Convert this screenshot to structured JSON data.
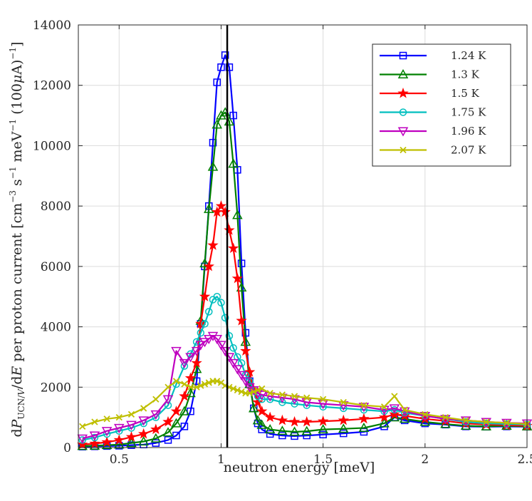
{
  "chart_data": {
    "type": "line",
    "title": "",
    "xlabel": "neutron energy [meV]",
    "ylabel": "dP_UCN/V/dE per proton current [cm^-3 s^-1 meV^-1 (100 μA)^-1]",
    "ylabel_parts": {
      "d1": "d",
      "p": "P",
      "sub": "UCN/",
      "v": "V",
      "mid": "/d",
      "e": "E",
      "text": " per proton current [cm",
      "s1": "−3",
      "t2": " s",
      "s2": "−1",
      "t3": " meV",
      "s3": "−1",
      "t4": " (100",
      "mu": "μ",
      "t5": "A)",
      "s4": "−1",
      "t6": "]"
    },
    "xlim": [
      0.3,
      2.5
    ],
    "ylim": [
      0,
      14000
    ],
    "xticks": [
      0.5,
      1,
      1.5,
      2,
      2.5
    ],
    "xtick_labels": [
      "0.5",
      "1",
      "1.5",
      "2",
      "2.5"
    ],
    "yticks": [
      0,
      2000,
      4000,
      6000,
      8000,
      10000,
      12000,
      14000
    ],
    "ytick_labels": [
      "0",
      "2000",
      "4000",
      "6000",
      "8000",
      "10000",
      "12000",
      "14000"
    ],
    "grid": true,
    "legend_position": "top-right",
    "vertical_line_x": 1.03,
    "series": [
      {
        "name": "1.24 K",
        "color": "#0000ff",
        "marker": "square",
        "x": [
          0.32,
          0.38,
          0.44,
          0.5,
          0.56,
          0.62,
          0.68,
          0.74,
          0.78,
          0.82,
          0.85,
          0.88,
          0.9,
          0.92,
          0.94,
          0.96,
          0.98,
          1.0,
          1.02,
          1.04,
          1.06,
          1.08,
          1.1,
          1.12,
          1.14,
          1.16,
          1.18,
          1.2,
          1.24,
          1.3,
          1.36,
          1.42,
          1.5,
          1.6,
          1.7,
          1.8,
          1.85,
          1.9,
          2.0,
          2.1,
          2.2,
          2.3,
          2.4,
          2.5
        ],
        "y": [
          30,
          40,
          50,
          60,
          80,
          100,
          150,
          250,
          400,
          700,
          1200,
          2200,
          4100,
          6000,
          8000,
          10100,
          12100,
          12600,
          13000,
          12600,
          11000,
          9200,
          6100,
          3800,
          2200,
          1300,
          800,
          600,
          450,
          400,
          380,
          400,
          430,
          470,
          520,
          700,
          1000,
          900,
          800,
          760,
          700,
          690,
          700,
          690
        ]
      },
      {
        "name": "1.3 K",
        "color": "#008000",
        "marker": "triangle-up",
        "x": [
          0.32,
          0.38,
          0.44,
          0.5,
          0.56,
          0.62,
          0.68,
          0.74,
          0.78,
          0.82,
          0.85,
          0.88,
          0.9,
          0.92,
          0.94,
          0.96,
          0.98,
          1.0,
          1.02,
          1.04,
          1.06,
          1.08,
          1.1,
          1.12,
          1.14,
          1.16,
          1.18,
          1.2,
          1.24,
          1.3,
          1.36,
          1.42,
          1.5,
          1.6,
          1.7,
          1.8,
          1.85,
          1.9,
          2.0,
          2.1,
          2.2,
          2.3,
          2.4,
          2.5
        ],
        "y": [
          50,
          60,
          80,
          100,
          150,
          200,
          300,
          500,
          800,
          1200,
          1800,
          2600,
          4200,
          6100,
          7900,
          9300,
          10700,
          11000,
          11100,
          10800,
          9400,
          7700,
          5300,
          3500,
          2100,
          1300,
          900,
          750,
          600,
          550,
          520,
          540,
          600,
          620,
          650,
          800,
          1000,
          950,
          850,
          780,
          720,
          700,
          720,
          700
        ]
      },
      {
        "name": "1.5 K",
        "color": "#ff0000",
        "marker": "star",
        "x": [
          0.32,
          0.38,
          0.44,
          0.5,
          0.56,
          0.62,
          0.68,
          0.74,
          0.78,
          0.82,
          0.85,
          0.88,
          0.9,
          0.92,
          0.94,
          0.96,
          0.98,
          1.0,
          1.02,
          1.04,
          1.06,
          1.08,
          1.1,
          1.12,
          1.14,
          1.16,
          1.18,
          1.2,
          1.24,
          1.3,
          1.36,
          1.42,
          1.5,
          1.6,
          1.7,
          1.8,
          1.85,
          1.9,
          2.0,
          2.1,
          2.2,
          2.3,
          2.4,
          2.5
        ],
        "y": [
          100,
          130,
          180,
          250,
          350,
          450,
          600,
          850,
          1200,
          1700,
          2300,
          2800,
          4100,
          5000,
          6000,
          6700,
          7800,
          8000,
          7800,
          7200,
          6600,
          5600,
          4200,
          3200,
          2500,
          1900,
          1500,
          1200,
          1000,
          900,
          850,
          850,
          870,
          900,
          950,
          1000,
          1100,
          1050,
          950,
          880,
          800,
          760,
          740,
          720
        ]
      },
      {
        "name": "1.75 K",
        "color": "#00bfbf",
        "marker": "circle",
        "x": [
          0.32,
          0.38,
          0.44,
          0.5,
          0.56,
          0.62,
          0.68,
          0.74,
          0.78,
          0.82,
          0.85,
          0.88,
          0.9,
          0.92,
          0.94,
          0.96,
          0.98,
          1.0,
          1.02,
          1.04,
          1.06,
          1.08,
          1.1,
          1.12,
          1.14,
          1.16,
          1.18,
          1.2,
          1.24,
          1.3,
          1.36,
          1.42,
          1.5,
          1.6,
          1.7,
          1.8,
          1.85,
          1.9,
          2.0,
          2.1,
          2.2,
          2.3,
          2.4,
          2.5
        ],
        "y": [
          250,
          330,
          450,
          550,
          650,
          800,
          1000,
          1400,
          2100,
          2700,
          3100,
          3500,
          3800,
          4100,
          4500,
          4900,
          5000,
          4800,
          4300,
          3700,
          3300,
          3000,
          2800,
          2400,
          2200,
          1900,
          1700,
          1600,
          1600,
          1500,
          1450,
          1400,
          1350,
          1300,
          1250,
          1200,
          1250,
          1150,
          1050,
          950,
          850,
          800,
          780,
          760
        ]
      },
      {
        "name": "1.96 K",
        "color": "#bf00bf",
        "marker": "triangle-down",
        "x": [
          0.32,
          0.38,
          0.44,
          0.5,
          0.56,
          0.62,
          0.68,
          0.74,
          0.78,
          0.82,
          0.85,
          0.88,
          0.9,
          0.92,
          0.94,
          0.96,
          0.98,
          1.0,
          1.02,
          1.04,
          1.06,
          1.08,
          1.1,
          1.12,
          1.14,
          1.16,
          1.18,
          1.2,
          1.24,
          1.3,
          1.36,
          1.42,
          1.5,
          1.6,
          1.7,
          1.8,
          1.85,
          1.9,
          2.0,
          2.1,
          2.2,
          2.3,
          2.4,
          2.5
        ],
        "y": [
          300,
          400,
          550,
          650,
          750,
          900,
          1100,
          1600,
          3200,
          2800,
          3000,
          3200,
          3400,
          3500,
          3600,
          3700,
          3600,
          3400,
          3200,
          3000,
          2800,
          2600,
          2400,
          2200,
          2000,
          1900,
          1800,
          1750,
          1700,
          1650,
          1600,
          1500,
          1450,
          1400,
          1350,
          1250,
          1300,
          1200,
          1050,
          950,
          900,
          850,
          820,
          800
        ]
      },
      {
        "name": "2.07 K",
        "color": "#bfbf00",
        "marker": "x",
        "x": [
          0.32,
          0.38,
          0.44,
          0.5,
          0.56,
          0.62,
          0.68,
          0.74,
          0.78,
          0.82,
          0.85,
          0.88,
          0.9,
          0.92,
          0.94,
          0.96,
          0.98,
          1.0,
          1.02,
          1.04,
          1.06,
          1.08,
          1.1,
          1.12,
          1.14,
          1.16,
          1.18,
          1.2,
          1.24,
          1.3,
          1.36,
          1.42,
          1.5,
          1.6,
          1.7,
          1.8,
          1.85,
          1.9,
          2.0,
          2.1,
          2.2,
          2.3,
          2.4,
          2.5
        ],
        "y": [
          700,
          850,
          950,
          1000,
          1100,
          1300,
          1600,
          2000,
          2200,
          2100,
          2000,
          2000,
          2050,
          2100,
          2150,
          2200,
          2200,
          2150,
          2050,
          2000,
          1950,
          1900,
          1850,
          1800,
          1800,
          1850,
          1900,
          1950,
          1800,
          1750,
          1700,
          1650,
          1600,
          1500,
          1400,
          1350,
          1700,
          1250,
          1100,
          1000,
          900,
          850,
          820,
          780
        ]
      }
    ]
  }
}
